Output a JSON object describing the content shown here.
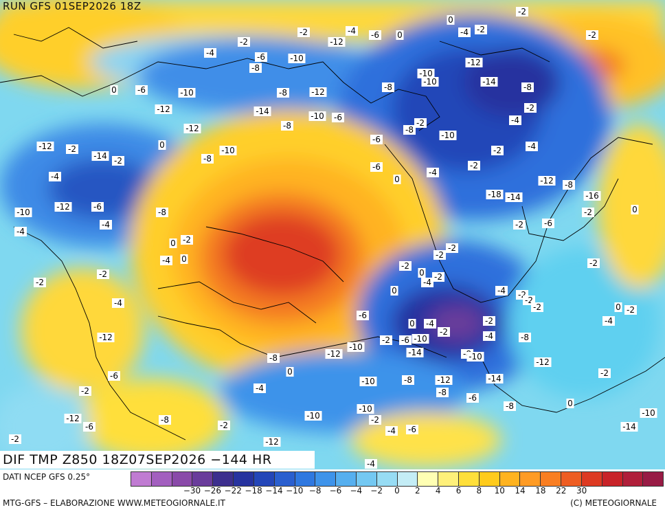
{
  "header": {
    "run": "RUN GFS 01SEP2026 18Z"
  },
  "field_title": "DIF TMP Z850 18Z07SEP2026 −144 HR",
  "footer": {
    "source": "DATI NCEP GFS 0.25°",
    "credit_left": "MTG-GFS – ELABORAZIONE WWW.METEOGIORNALE.IT",
    "credit_right": "(C) METEOGIORNALE"
  },
  "scale": {
    "colors": [
      "#c07bd2",
      "#a35fbf",
      "#8a4aa9",
      "#6a3c9b",
      "#3d2f8e",
      "#27339f",
      "#2446b8",
      "#2a5fcf",
      "#2f78e0",
      "#3e93ea",
      "#56afef",
      "#74c8f2",
      "#97dcf4",
      "#c4edf6",
      "#ffffb3",
      "#fff07a",
      "#ffdf3a",
      "#ffcb1c",
      "#ffb320",
      "#ff9b24",
      "#f97e22",
      "#ee5d22",
      "#dd3a22",
      "#c82328",
      "#b01f3a",
      "#981b45"
    ],
    "labels": [
      "−30",
      "−26",
      "−22",
      "−18",
      "−14",
      "−10",
      "−8",
      "−6",
      "−4",
      "−2",
      "0",
      "2",
      "4",
      "6",
      "8",
      "10",
      "14",
      "18",
      "22",
      "30"
    ]
  },
  "map_labels": [
    "-2",
    "0",
    "-2",
    "-4",
    "-6",
    "0",
    "-4",
    "-2",
    "-2",
    "-4",
    "-12",
    "-2",
    "-6",
    "-10",
    "-8",
    "-12",
    "-10",
    "-14",
    "-8",
    "-10",
    "-8",
    "-12",
    "0",
    "-6",
    "-10",
    "-8",
    "-12",
    "-14",
    "-2",
    "-4",
    "-2",
    "-8",
    "-10",
    "-6",
    "-8",
    "-12",
    "-10",
    "-2",
    "-4",
    "-6",
    "0",
    "-10",
    "-8",
    "-2",
    "-12",
    "-14",
    "-2",
    "-6",
    "-4",
    "-2",
    "0",
    "-4",
    "-12",
    "-8",
    "-16",
    "-18",
    "-14",
    "-10",
    "-12",
    "-6",
    "-8",
    "-4",
    "-2",
    "0",
    "-2",
    "-6",
    "-4",
    "-2",
    "0",
    "-2",
    "-2",
    "0",
    "-4",
    "-2",
    "0",
    "-2",
    "-4",
    "-2",
    "-2",
    "0",
    "-4",
    "-2",
    "-2",
    "-4",
    "-2"
  ]
}
